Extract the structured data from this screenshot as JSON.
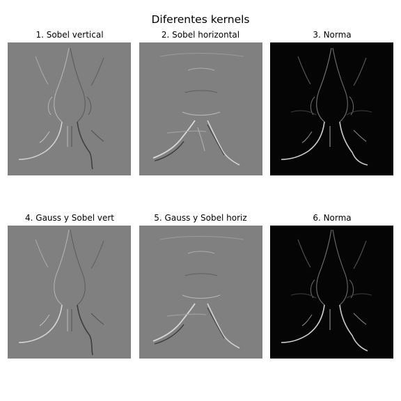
{
  "figure": {
    "title": "Diferentes kernels"
  },
  "panels": [
    {
      "title": "1. Sobel vertical",
      "tone": "gray"
    },
    {
      "title": "2. Sobel horizontal",
      "tone": "gray"
    },
    {
      "title": "3. Norma",
      "tone": "black"
    },
    {
      "title": "4. Gauss y Sobel vert",
      "tone": "gray"
    },
    {
      "title": "5. Gauss y Sobel horiz",
      "tone": "gray"
    },
    {
      "title": "6. Norma",
      "tone": "black"
    }
  ],
  "colors": {
    "mid_gray": "#808080",
    "black": "#050505",
    "edge_light": "#d8d8d8",
    "edge_dark": "#3a3a3a"
  }
}
